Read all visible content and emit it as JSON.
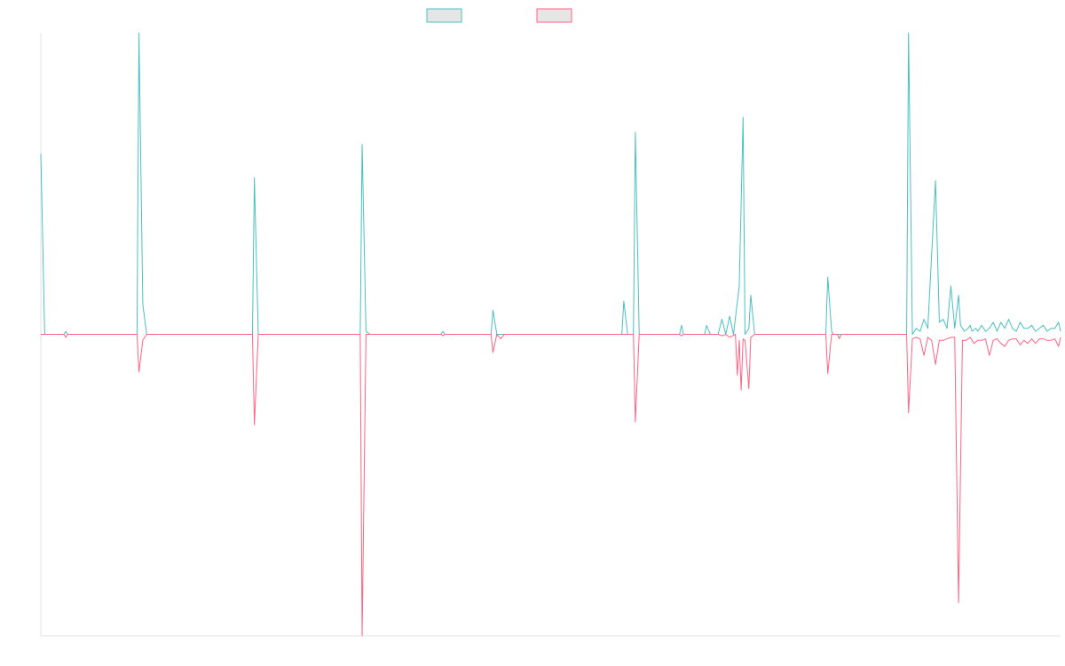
{
  "chart_data": {
    "type": "line",
    "title": "",
    "xlabel": "",
    "ylabel": "",
    "grid": false,
    "legend": "top-center",
    "x_count": 265,
    "ylim": [
      -100,
      100
    ],
    "series": [
      {
        "color": "#4bc0c0",
        "fill": "#e6e6e6",
        "points": [
          [
            0,
            60
          ],
          [
            1,
            0
          ],
          [
            6,
            0
          ],
          [
            6.5,
            1
          ],
          [
            7,
            0
          ],
          [
            25,
            0
          ],
          [
            25.5,
            100
          ],
          [
            26.5,
            10
          ],
          [
            27.5,
            0
          ],
          [
            55,
            0
          ],
          [
            55.5,
            52
          ],
          [
            56.5,
            0
          ],
          [
            83,
            0
          ],
          [
            83.5,
            63
          ],
          [
            84.5,
            1
          ],
          [
            85.5,
            0
          ],
          [
            104,
            0
          ],
          [
            104.5,
            1
          ],
          [
            105,
            0
          ],
          [
            117,
            0
          ],
          [
            117.5,
            8
          ],
          [
            118.5,
            0
          ],
          [
            119.5,
            0
          ],
          [
            120.5,
            0
          ],
          [
            151,
            0
          ],
          [
            151.5,
            11
          ],
          [
            152.5,
            0
          ],
          [
            154,
            0
          ],
          [
            154.5,
            67
          ],
          [
            155.5,
            0
          ],
          [
            166,
            0
          ],
          [
            166.5,
            3
          ],
          [
            167,
            0
          ],
          [
            172.5,
            0
          ],
          [
            173,
            3
          ],
          [
            174,
            0
          ],
          [
            176,
            0
          ],
          [
            177,
            5
          ],
          [
            178,
            0
          ],
          [
            179,
            6
          ],
          [
            180,
            0
          ],
          [
            181.5,
            16
          ],
          [
            182.5,
            72
          ],
          [
            183,
            0
          ],
          [
            184,
            2
          ],
          [
            184.5,
            13
          ],
          [
            185.5,
            0
          ],
          [
            204,
            0
          ],
          [
            204.5,
            19
          ],
          [
            205.5,
            1
          ],
          [
            206,
            0
          ],
          [
            225,
            0
          ],
          [
            225.5,
            100
          ],
          [
            226.5,
            0
          ],
          [
            227.5,
            2
          ],
          [
            228.5,
            1
          ],
          [
            229.5,
            5
          ],
          [
            230.5,
            2
          ],
          [
            232.5,
            51
          ],
          [
            233.5,
            4
          ],
          [
            234.5,
            5
          ],
          [
            235.5,
            2
          ],
          [
            236.5,
            16
          ],
          [
            237.5,
            2
          ],
          [
            238.5,
            13
          ],
          [
            239,
            3
          ],
          [
            240,
            1
          ],
          [
            241,
            2
          ],
          [
            241.5,
            3
          ],
          [
            242,
            1
          ],
          [
            243,
            2
          ],
          [
            243.5,
            1
          ],
          [
            244.5,
            3
          ],
          [
            245.5,
            1
          ],
          [
            246.5,
            2
          ],
          [
            247.5,
            4
          ],
          [
            248.5,
            1
          ],
          [
            249.5,
            4
          ],
          [
            250.5,
            2
          ],
          [
            251.5,
            5
          ],
          [
            252.5,
            2
          ],
          [
            253.5,
            1
          ],
          [
            254.5,
            4
          ],
          [
            255.5,
            2
          ],
          [
            256.5,
            2
          ],
          [
            257.5,
            3
          ],
          [
            258.5,
            1
          ],
          [
            259.5,
            2
          ],
          [
            260.5,
            3
          ],
          [
            261.5,
            1
          ],
          [
            262.5,
            2
          ],
          [
            263.5,
            2
          ],
          [
            264.5,
            4
          ],
          [
            265,
            1
          ]
        ]
      },
      {
        "color": "#ff6384",
        "fill": "#e6e6e6",
        "points": [
          [
            0,
            0
          ],
          [
            6,
            0
          ],
          [
            6.5,
            -1
          ],
          [
            7,
            0
          ],
          [
            25,
            0
          ],
          [
            25.5,
            -12.5
          ],
          [
            26.5,
            -2
          ],
          [
            27.5,
            0
          ],
          [
            55,
            0
          ],
          [
            55.5,
            -30
          ],
          [
            56.5,
            0
          ],
          [
            83,
            0
          ],
          [
            83.5,
            -100
          ],
          [
            84.5,
            0
          ],
          [
            104,
            0
          ],
          [
            104.5,
            -0.5
          ],
          [
            105,
            0
          ],
          [
            117,
            0
          ],
          [
            117.5,
            -6
          ],
          [
            118.5,
            0
          ],
          [
            119.5,
            -1.5
          ],
          [
            120.5,
            0
          ],
          [
            154,
            0
          ],
          [
            154.5,
            -29
          ],
          [
            155.5,
            0
          ],
          [
            166,
            0
          ],
          [
            166.5,
            -0.5
          ],
          [
            167,
            0
          ],
          [
            176,
            0
          ],
          [
            177,
            -0.5
          ],
          [
            178,
            0
          ],
          [
            179,
            -1
          ],
          [
            180.5,
            0
          ],
          [
            181,
            -13.5
          ],
          [
            181.5,
            -2
          ],
          [
            182,
            -18.5
          ],
          [
            182.5,
            -1.5
          ],
          [
            183,
            -2
          ],
          [
            184,
            -18
          ],
          [
            184.5,
            -1
          ],
          [
            185.5,
            0
          ],
          [
            204,
            0
          ],
          [
            204.5,
            -13
          ],
          [
            205.5,
            0
          ],
          [
            207,
            0
          ],
          [
            207.5,
            -1.5
          ],
          [
            208,
            0
          ],
          [
            225,
            0
          ],
          [
            225.5,
            -26
          ],
          [
            226.5,
            -1.5
          ],
          [
            227.5,
            -1
          ],
          [
            228.5,
            -1.5
          ],
          [
            229.5,
            -7
          ],
          [
            230.5,
            -1
          ],
          [
            231.5,
            -2
          ],
          [
            232.5,
            -10
          ],
          [
            233.5,
            -2
          ],
          [
            234.5,
            -2
          ],
          [
            235.5,
            -1.5
          ],
          [
            236.5,
            -1
          ],
          [
            237.5,
            -1
          ],
          [
            238.5,
            -89
          ],
          [
            239.5,
            -2
          ],
          [
            240.5,
            -2
          ],
          [
            241.5,
            -1
          ],
          [
            242.5,
            -3
          ],
          [
            243.5,
            -2
          ],
          [
            244.5,
            -2
          ],
          [
            245.5,
            -1.5
          ],
          [
            246.5,
            -7
          ],
          [
            247.5,
            -2
          ],
          [
            248.5,
            -1.5
          ],
          [
            249.5,
            -3
          ],
          [
            250.5,
            -4
          ],
          [
            251.5,
            -2
          ],
          [
            252.5,
            -1.5
          ],
          [
            253.5,
            -1.5
          ],
          [
            254.5,
            -3.5
          ],
          [
            255.5,
            -2
          ],
          [
            256.5,
            -3
          ],
          [
            257.5,
            -1.5
          ],
          [
            258.5,
            -3
          ],
          [
            259.5,
            -1.5
          ],
          [
            260.5,
            -1.5
          ],
          [
            261.5,
            -2
          ],
          [
            262.5,
            -2
          ],
          [
            263.5,
            -1.5
          ],
          [
            264.5,
            -4
          ],
          [
            265,
            -1
          ]
        ]
      }
    ]
  }
}
